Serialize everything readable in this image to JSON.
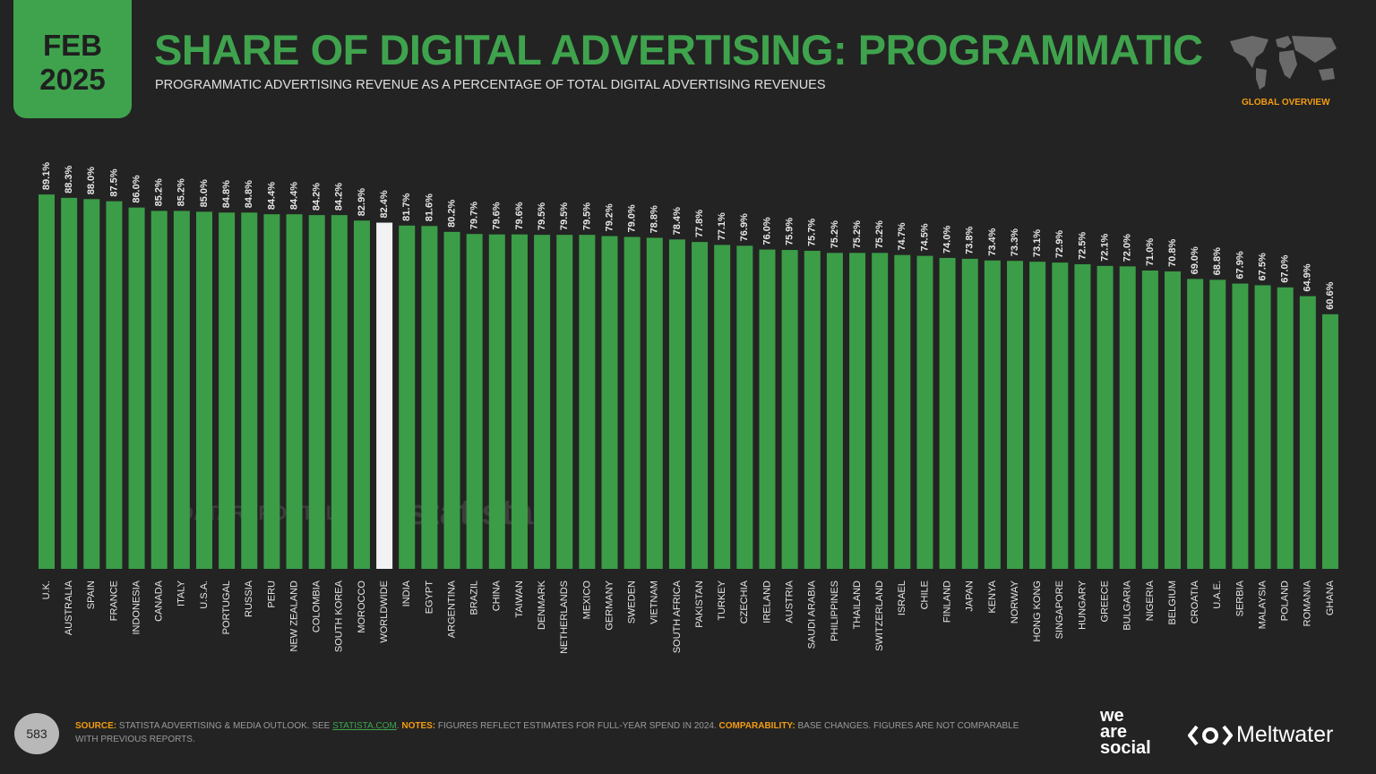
{
  "slide": {
    "badge_month": "FEB",
    "badge_year": "2025",
    "global_label": "GLOBAL OVERVIEW",
    "page_number": "583",
    "source_label": "SOURCE:",
    "source_text": "STATISTA ADVERTISING & MEDIA OUTLOOK. SEE",
    "source_link": "STATISTA.COM",
    "notes_label": "NOTES:",
    "notes_text": "FIGURES REFLECT ESTIMATES FOR FULL-YEAR SPEND IN 2024.",
    "comparability_label": "COMPARABILITY:",
    "comparability_text": "BASE CHANGES. FIGURES ARE NOT COMPARABLE WITH PREVIOUS REPORTS.",
    "watermark_1": "DATAREPORTAL",
    "watermark_2": "statista",
    "logo_1": [
      "we",
      "are",
      "social"
    ],
    "logo_2": "Meltwater"
  },
  "chart_data": {
    "type": "bar",
    "title": "SHARE OF DIGITAL ADVERTISING: PROGRAMMATIC",
    "subtitle": "PROGRAMMATIC ADVERTISING REVENUE AS A PERCENTAGE OF TOTAL DIGITAL ADVERTISING REVENUES",
    "categories": [
      "U.K.",
      "AUSTRALIA",
      "SPAIN",
      "FRANCE",
      "INDONESIA",
      "CANADA",
      "ITALY",
      "U.S.A.",
      "PORTUGAL",
      "RUSSIA",
      "PERU",
      "NEW ZEALAND",
      "COLOMBIA",
      "SOUTH KOREA",
      "MOROCCO",
      "WORLDWIDE",
      "INDIA",
      "EGYPT",
      "ARGENTINA",
      "BRAZIL",
      "CHINA",
      "TAIWAN",
      "DENMARK",
      "NETHERLANDS",
      "MEXICO",
      "GERMANY",
      "SWEDEN",
      "VIETNAM",
      "SOUTH AFRICA",
      "PAKISTAN",
      "TURKEY",
      "CZECHIA",
      "IRELAND",
      "AUSTRIA",
      "SAUDI ARABIA",
      "PHILIPPINES",
      "THAILAND",
      "SWITZERLAND",
      "ISRAEL",
      "CHILE",
      "FINLAND",
      "JAPAN",
      "KENYA",
      "NORWAY",
      "HONG KONG",
      "SINGAPORE",
      "HUNGARY",
      "GREECE",
      "BULGARIA",
      "NIGERIA",
      "BELGIUM",
      "CROATIA",
      "U.A.E.",
      "SERBIA",
      "MALAYSIA",
      "POLAND",
      "ROMANIA",
      "GHANA"
    ],
    "values": [
      89.1,
      88.3,
      88.0,
      87.5,
      86.0,
      85.2,
      85.2,
      85.0,
      84.8,
      84.8,
      84.4,
      84.4,
      84.2,
      84.2,
      82.9,
      82.4,
      81.7,
      81.6,
      80.2,
      79.7,
      79.6,
      79.6,
      79.5,
      79.5,
      79.5,
      79.2,
      79.0,
      78.8,
      78.4,
      77.8,
      77.1,
      76.9,
      76.0,
      75.9,
      75.7,
      75.2,
      75.2,
      75.2,
      74.7,
      74.5,
      74.0,
      73.8,
      73.4,
      73.3,
      73.1,
      72.9,
      72.5,
      72.1,
      72.0,
      71.0,
      70.8,
      69.0,
      68.8,
      67.9,
      67.5,
      67.0,
      64.9,
      60.6
    ],
    "value_labels": [
      "89.1%",
      "88.3%",
      "88.0%",
      "87.5%",
      "86.0%",
      "85.2%",
      "85.2%",
      "85.0%",
      "84.8%",
      "84.8%",
      "84.4%",
      "84.4%",
      "84.2%",
      "84.2%",
      "82.9%",
      "82.4%",
      "81.7%",
      "81.6%",
      "80.2%",
      "79.7%",
      "79.6%",
      "79.6%",
      "79.5%",
      "79.5%",
      "79.5%",
      "79.2%",
      "79.0%",
      "78.8%",
      "78.4%",
      "77.8%",
      "77.1%",
      "76.9%",
      "76.0%",
      "75.9%",
      "75.7%",
      "75.2%",
      "75.2%",
      "75.2%",
      "74.7%",
      "74.5%",
      "74.0%",
      "73.8%",
      "73.4%",
      "73.3%",
      "73.1%",
      "72.9%",
      "72.5%",
      "72.1%",
      "72.0%",
      "71.0%",
      "70.8%",
      "69.0%",
      "68.8%",
      "67.9%",
      "67.5%",
      "67.0%",
      "64.9%",
      "60.6%"
    ],
    "colors": [
      "#3b9d47",
      "#3b9d47",
      "#3b9d47",
      "#3b9d47",
      "#3b9d47",
      "#3b9d47",
      "#3b9d47",
      "#3b9d47",
      "#3b9d47",
      "#3b9d47",
      "#3b9d47",
      "#3b9d47",
      "#3b9d47",
      "#3b9d47",
      "#3b9d47",
      "#f2f2f2",
      "#3b9d47",
      "#3b9d47",
      "#3b9d47",
      "#3b9d47",
      "#3b9d47",
      "#3b9d47",
      "#3b9d47",
      "#3b9d47",
      "#3b9d47",
      "#3b9d47",
      "#3b9d47",
      "#3b9d47",
      "#3b9d47",
      "#3b9d47",
      "#3b9d47",
      "#3b9d47",
      "#3b9d47",
      "#3b9d47",
      "#3b9d47",
      "#3b9d47",
      "#3b9d47",
      "#3b9d47",
      "#3b9d47",
      "#3b9d47",
      "#3b9d47",
      "#3b9d47",
      "#3b9d47",
      "#3b9d47",
      "#3b9d47",
      "#3b9d47",
      "#3b9d47",
      "#3b9d47",
      "#3b9d47",
      "#3b9d47",
      "#3b9d47",
      "#3b9d47",
      "#3b9d47",
      "#3b9d47",
      "#3b9d47",
      "#3b9d47",
      "#3b9d47",
      "#3b9d47"
    ],
    "ylim": [
      0,
      100
    ]
  }
}
